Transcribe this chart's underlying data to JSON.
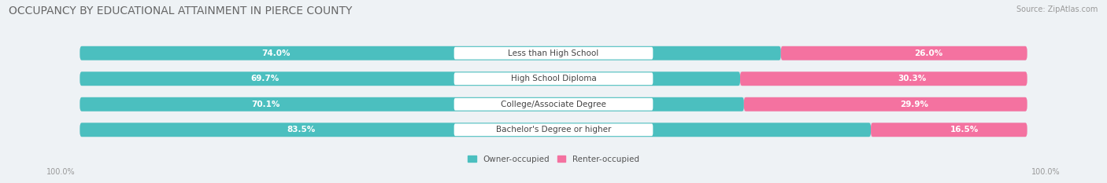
{
  "title": "OCCUPANCY BY EDUCATIONAL ATTAINMENT IN PIERCE COUNTY",
  "source": "Source: ZipAtlas.com",
  "categories": [
    "Less than High School",
    "High School Diploma",
    "College/Associate Degree",
    "Bachelor's Degree or higher"
  ],
  "owner_values": [
    74.0,
    69.7,
    70.1,
    83.5
  ],
  "renter_values": [
    26.0,
    30.3,
    29.9,
    16.5
  ],
  "owner_color": "#4bbfbf",
  "renter_color": "#f472a0",
  "bg_color": "#eef2f5",
  "bar_bg_color": "#dce3ea",
  "title_fontsize": 10,
  "label_fontsize": 7.5,
  "tick_fontsize": 7,
  "legend_fontsize": 7.5,
  "source_fontsize": 7,
  "bar_height": 0.55,
  "axis_label_left": "100.0%",
  "axis_label_right": "100.0%"
}
